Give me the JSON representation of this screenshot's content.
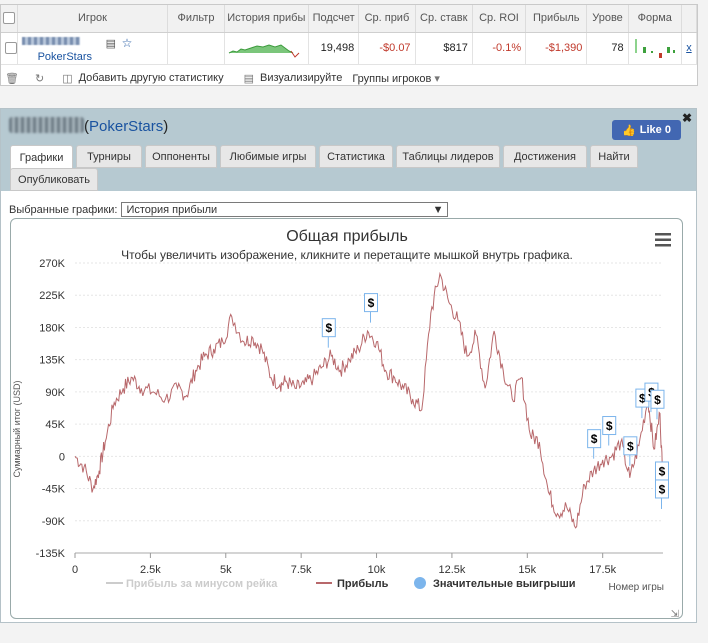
{
  "table": {
    "headers": [
      "Игрок",
      "Фильтр",
      "История прибы",
      "Подсчет",
      "Ср. приб",
      "Ср. ставк",
      "Ср. ROI",
      "Прибыль",
      "Урове",
      "Форма"
    ],
    "row": {
      "player": "PokerStars",
      "count": "19,498",
      "avg_profit": "-$0.07",
      "avg_stake": "$817",
      "avg_roi": "-0.1%",
      "profit": "-$1,390",
      "level": "78",
      "remove": "x"
    }
  },
  "toolbar": {
    "add_stats": "Добавить другую статистику",
    "visualize": "Визуализируйте",
    "groups": "Группы игроков"
  },
  "panel": {
    "site": "PokerStars",
    "like_label": "Like 0",
    "tabs": [
      "Графики",
      "Турниры",
      "Оппоненты",
      "Любимые игры",
      "Статистика",
      "Таблицы лидеров",
      "Достижения",
      "Найти",
      "Опубликовать"
    ],
    "selected_label": "Выбранные графики:",
    "selected_value": "История прибыли"
  },
  "chart_data": {
    "type": "line",
    "title": "Общая прибыль",
    "subtitle": "Чтобы увеличить изображение, кликните и перетащите мышкой внутрь графика.",
    "ylabel": "Суммарный итог (USD)",
    "xlabel": "Номер игры",
    "ylim": [
      -135000,
      270000
    ],
    "xlim": [
      0,
      19500
    ],
    "y_ticks": [
      "270K",
      "225K",
      "180K",
      "135K",
      "90K",
      "45K",
      "0",
      "-45K",
      "-90K",
      "-135K"
    ],
    "x_ticks": [
      "0",
      "2.5k",
      "5k",
      "7.5k",
      "10k",
      "12.5k",
      "15k",
      "17.5k"
    ],
    "legend": [
      "Прибыль за минусом рейка",
      "Прибыль",
      "Значительные выигрыши"
    ],
    "marker_label": "$",
    "colors": {
      "profit": "#b8686b",
      "rake": "#cccccc",
      "wins": "#7cb5ec"
    },
    "series": [
      {
        "name": "Прибыль",
        "x": [
          0,
          300,
          600,
          800,
          1000,
          1300,
          1600,
          1900,
          2200,
          2600,
          3000,
          3400,
          3700,
          4000,
          4300,
          4600,
          4900,
          5200,
          5600,
          5900,
          6200,
          6500,
          6800,
          7000,
          7300,
          7600,
          7900,
          8200,
          8500,
          8800,
          9100,
          9400,
          9700,
          10000,
          10300,
          10600,
          10900,
          11200,
          11500,
          11800,
          12100,
          12400,
          12700,
          13000,
          13300,
          13600,
          13900,
          14200,
          14500,
          14800,
          15100,
          15400,
          15700,
          16000,
          16300,
          16600,
          16900,
          17200,
          17500,
          17800,
          18100,
          18400,
          18700,
          19000,
          19200,
          19400,
          19500
        ],
        "y": [
          0,
          -15000,
          -45000,
          -20000,
          20000,
          75000,
          95000,
          110000,
          95000,
          90000,
          80000,
          95000,
          85000,
          120000,
          140000,
          150000,
          160000,
          195000,
          160000,
          165000,
          150000,
          110000,
          100000,
          105000,
          95000,
          100000,
          110000,
          125000,
          140000,
          120000,
          135000,
          150000,
          175000,
          160000,
          120000,
          110000,
          95000,
          80000,
          65000,
          200000,
          255000,
          215000,
          190000,
          140000,
          170000,
          95000,
          175000,
          120000,
          80000,
          110000,
          30000,
          20000,
          -50000,
          -80000,
          -70000,
          -100000,
          -40000,
          -20000,
          -5000,
          0,
          20000,
          -30000,
          15000,
          80000,
          10000,
          60000,
          -40000
        ]
      }
    ],
    "wins_at_x": [
      8400,
      9800,
      17200,
      17700,
      18400,
      18800,
      19100,
      19300,
      19500,
      19500
    ]
  }
}
